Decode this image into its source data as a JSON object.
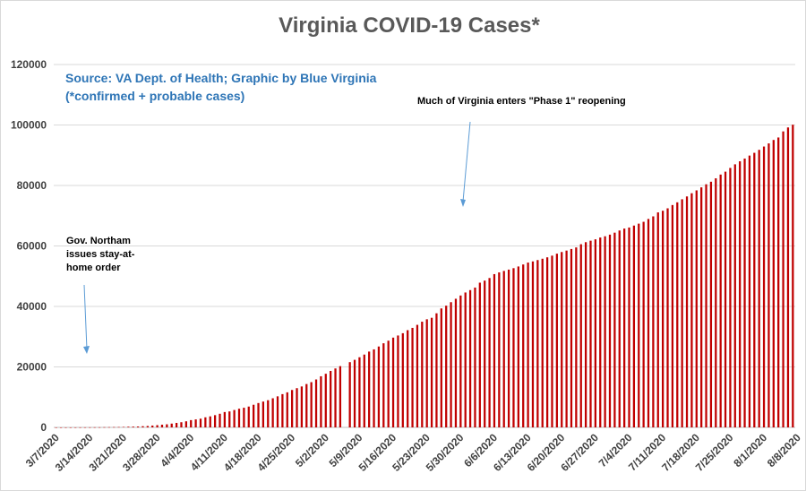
{
  "chart_data": {
    "type": "bar",
    "title": "Virginia COVID-19 Cases*",
    "source_line1": "Source: VA Dept. of Health; Graphic by Blue Virginia",
    "source_line2": "(*confirmed + probable cases)",
    "start_date": "3/7/2020",
    "end_date": "8/9/2020",
    "ylim": [
      0,
      120000
    ],
    "yticks": [
      "0",
      "20000",
      "40000",
      "60000",
      "80000",
      "100000",
      "120000"
    ],
    "xtick_labels": [
      "3/7/2020",
      "3/14/2020",
      "3/21/2020",
      "3/28/2020",
      "4/4/2020",
      "4/11/2020",
      "4/18/2020",
      "4/25/2020",
      "5/2/2020",
      "5/9/2020",
      "5/16/2020",
      "5/23/2020",
      "5/30/2020",
      "6/6/2020",
      "6/13/2020",
      "6/20/2020",
      "6/27/2020",
      "7/4/2020",
      "7/11/2020",
      "7/18/2020",
      "7/25/2020",
      "8/1/2020",
      "8/8/2020"
    ],
    "values": [
      2,
      3,
      5,
      9,
      12,
      17,
      25,
      30,
      41,
      45,
      67,
      77,
      99,
      114,
      152,
      219,
      254,
      290,
      391,
      460,
      604,
      739,
      890,
      1020,
      1250,
      1484,
      1706,
      2012,
      2407,
      2637,
      2878,
      3333,
      3645,
      4042,
      4509,
      5077,
      5274,
      5747,
      6171,
      6500,
      6889,
      7491,
      8053,
      8537,
      8990,
      9630,
      10266,
      10998,
      11594,
      12366,
      12970,
      13535,
      14339,
      14961,
      15846,
      16901,
      17731,
      18671,
      19492,
      20256,
      0,
      21570,
      22342,
      23196,
      24081,
      25070,
      25800,
      26746,
      27813,
      28672,
      29683,
      30388,
      31140,
      32145,
      32908,
      33908,
      34950,
      35749,
      36244,
      37727,
      39342,
      40249,
      41401,
      42533,
      43611,
      44607,
      45398,
      46239,
      47856,
      48532,
      49397,
      50681,
      51251,
      51738,
      52177,
      52647,
      53211,
      53869,
      54506,
      54886,
      55331,
      55775,
      56238,
      56793,
      57443,
      57994,
      58465,
      58994,
      59514,
      60570,
      61247,
      61736,
      62189,
      62787,
      63203,
      63735,
      64393,
      65109,
      65748,
      66102,
      66740,
      67375,
      67988,
      68931,
      69782,
      71095,
      71642,
      72443,
      73527,
      74431,
      75433,
      76373,
      77430,
      78375,
      79371,
      80393,
      81237,
      82364,
      83609,
      84567,
      85801,
      86994,
      87993,
      88904,
      89888,
      90801,
      91782,
      92877,
      93913,
      95049,
      95867,
      97882,
      99189,
      100086
    ],
    "annotations": [
      {
        "text_lines": [
          "Gov. Northam",
          "issues stay-at-",
          "home order"
        ]
      },
      {
        "text_lines": [
          "Much of Virginia enters \"Phase 1\" reopening"
        ]
      }
    ],
    "bar_color": "#c00000",
    "arrow_color": "#5b9bd5"
  }
}
